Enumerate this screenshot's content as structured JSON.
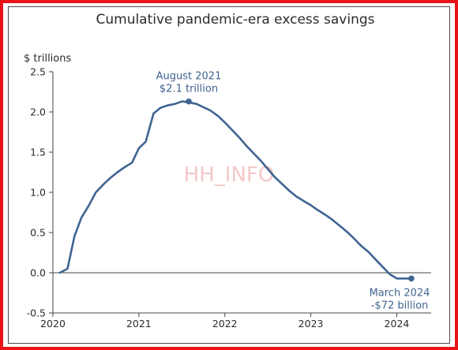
{
  "watermark": "HH_INFO",
  "chart_data": {
    "type": "line",
    "title": "Cumulative pandemic-era excess savings",
    "ylabel": "$ trillions",
    "xlabel": "",
    "ylim": [
      -0.5,
      2.5
    ],
    "xlim": [
      2020.0,
      2024.4
    ],
    "yticks": [
      "2.5",
      "2.0",
      "1.5",
      "1.0",
      "0.5",
      "0.0",
      "-0.5"
    ],
    "xticks": [
      "2020",
      "2021",
      "2022",
      "2023",
      "2024"
    ],
    "grid": false,
    "line_color": "#3f6492",
    "series": [
      {
        "x": [
          2020.08,
          2020.17,
          2020.25,
          2020.33,
          2020.42,
          2020.5,
          2020.58,
          2020.67,
          2020.75,
          2020.83,
          2020.92,
          2021.0,
          2021.08,
          2021.17,
          2021.25,
          2021.33,
          2021.42,
          2021.5,
          2021.58,
          2021.67,
          2021.75,
          2021.83,
          2021.92,
          2022.0,
          2022.08,
          2022.17,
          2022.25,
          2022.33,
          2022.42,
          2022.5,
          2022.58,
          2022.67,
          2022.75,
          2022.83,
          2022.92,
          2023.0,
          2023.08,
          2023.17,
          2023.25,
          2023.33,
          2023.42,
          2023.5,
          2023.58,
          2023.67,
          2023.75,
          2023.83,
          2023.92,
          2024.0,
          2024.08,
          2024.17
        ],
        "values": [
          0.0,
          0.05,
          0.45,
          0.68,
          0.84,
          1.0,
          1.09,
          1.18,
          1.25,
          1.31,
          1.37,
          1.55,
          1.63,
          1.98,
          2.05,
          2.08,
          2.1,
          2.13,
          2.12,
          2.1,
          2.06,
          2.02,
          1.95,
          1.87,
          1.78,
          1.68,
          1.58,
          1.49,
          1.39,
          1.29,
          1.19,
          1.1,
          1.02,
          0.95,
          0.89,
          0.84,
          0.78,
          0.72,
          0.66,
          0.59,
          0.51,
          0.43,
          0.34,
          0.26,
          0.17,
          0.08,
          -0.02,
          -0.072,
          -0.072,
          -0.072
        ]
      }
    ],
    "annotations": [
      {
        "x": 2021.58,
        "y": 2.13,
        "lines": [
          "August 2021",
          "$2.1 trillion"
        ]
      },
      {
        "x": 2024.17,
        "y": -0.072,
        "lines": [
          "March 2024",
          "-$72 billion"
        ]
      }
    ]
  }
}
